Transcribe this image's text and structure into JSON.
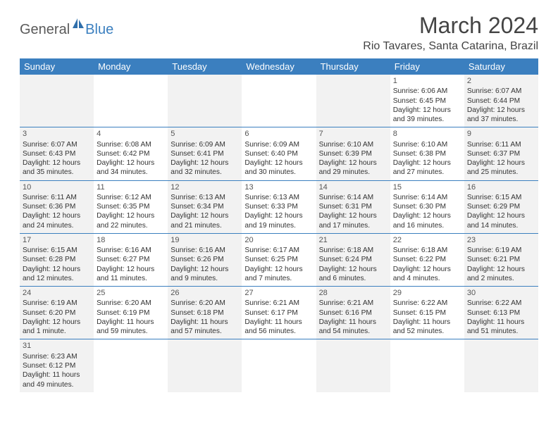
{
  "brand": {
    "part1": "General",
    "part2": "Blue"
  },
  "title": "March 2024",
  "location": "Rio Tavares, Santa Catarina, Brazil",
  "colors": {
    "header_bg": "#3b7fbf",
    "header_text": "#ffffff",
    "shaded_bg": "#f2f2f2",
    "border": "#3b7fbf",
    "text": "#333333",
    "brand_gray": "#5a5a5a",
    "brand_blue": "#3b7fbf"
  },
  "day_names": [
    "Sunday",
    "Monday",
    "Tuesday",
    "Wednesday",
    "Thursday",
    "Friday",
    "Saturday"
  ],
  "weeks": [
    [
      {
        "shaded": true
      },
      {
        "shaded": false
      },
      {
        "shaded": true
      },
      {
        "shaded": false
      },
      {
        "shaded": true
      },
      {
        "shaded": false,
        "num": "1",
        "sunrise": "Sunrise: 6:06 AM",
        "sunset": "Sunset: 6:45 PM",
        "daylight1": "Daylight: 12 hours",
        "daylight2": "and 39 minutes."
      },
      {
        "shaded": true,
        "num": "2",
        "sunrise": "Sunrise: 6:07 AM",
        "sunset": "Sunset: 6:44 PM",
        "daylight1": "Daylight: 12 hours",
        "daylight2": "and 37 minutes."
      }
    ],
    [
      {
        "shaded": true,
        "num": "3",
        "sunrise": "Sunrise: 6:07 AM",
        "sunset": "Sunset: 6:43 PM",
        "daylight1": "Daylight: 12 hours",
        "daylight2": "and 35 minutes."
      },
      {
        "shaded": false,
        "num": "4",
        "sunrise": "Sunrise: 6:08 AM",
        "sunset": "Sunset: 6:42 PM",
        "daylight1": "Daylight: 12 hours",
        "daylight2": "and 34 minutes."
      },
      {
        "shaded": true,
        "num": "5",
        "sunrise": "Sunrise: 6:09 AM",
        "sunset": "Sunset: 6:41 PM",
        "daylight1": "Daylight: 12 hours",
        "daylight2": "and 32 minutes."
      },
      {
        "shaded": false,
        "num": "6",
        "sunrise": "Sunrise: 6:09 AM",
        "sunset": "Sunset: 6:40 PM",
        "daylight1": "Daylight: 12 hours",
        "daylight2": "and 30 minutes."
      },
      {
        "shaded": true,
        "num": "7",
        "sunrise": "Sunrise: 6:10 AM",
        "sunset": "Sunset: 6:39 PM",
        "daylight1": "Daylight: 12 hours",
        "daylight2": "and 29 minutes."
      },
      {
        "shaded": false,
        "num": "8",
        "sunrise": "Sunrise: 6:10 AM",
        "sunset": "Sunset: 6:38 PM",
        "daylight1": "Daylight: 12 hours",
        "daylight2": "and 27 minutes."
      },
      {
        "shaded": true,
        "num": "9",
        "sunrise": "Sunrise: 6:11 AM",
        "sunset": "Sunset: 6:37 PM",
        "daylight1": "Daylight: 12 hours",
        "daylight2": "and 25 minutes."
      }
    ],
    [
      {
        "shaded": true,
        "num": "10",
        "sunrise": "Sunrise: 6:11 AM",
        "sunset": "Sunset: 6:36 PM",
        "daylight1": "Daylight: 12 hours",
        "daylight2": "and 24 minutes."
      },
      {
        "shaded": false,
        "num": "11",
        "sunrise": "Sunrise: 6:12 AM",
        "sunset": "Sunset: 6:35 PM",
        "daylight1": "Daylight: 12 hours",
        "daylight2": "and 22 minutes."
      },
      {
        "shaded": true,
        "num": "12",
        "sunrise": "Sunrise: 6:13 AM",
        "sunset": "Sunset: 6:34 PM",
        "daylight1": "Daylight: 12 hours",
        "daylight2": "and 21 minutes."
      },
      {
        "shaded": false,
        "num": "13",
        "sunrise": "Sunrise: 6:13 AM",
        "sunset": "Sunset: 6:33 PM",
        "daylight1": "Daylight: 12 hours",
        "daylight2": "and 19 minutes."
      },
      {
        "shaded": true,
        "num": "14",
        "sunrise": "Sunrise: 6:14 AM",
        "sunset": "Sunset: 6:31 PM",
        "daylight1": "Daylight: 12 hours",
        "daylight2": "and 17 minutes."
      },
      {
        "shaded": false,
        "num": "15",
        "sunrise": "Sunrise: 6:14 AM",
        "sunset": "Sunset: 6:30 PM",
        "daylight1": "Daylight: 12 hours",
        "daylight2": "and 16 minutes."
      },
      {
        "shaded": true,
        "num": "16",
        "sunrise": "Sunrise: 6:15 AM",
        "sunset": "Sunset: 6:29 PM",
        "daylight1": "Daylight: 12 hours",
        "daylight2": "and 14 minutes."
      }
    ],
    [
      {
        "shaded": true,
        "num": "17",
        "sunrise": "Sunrise: 6:15 AM",
        "sunset": "Sunset: 6:28 PM",
        "daylight1": "Daylight: 12 hours",
        "daylight2": "and 12 minutes."
      },
      {
        "shaded": false,
        "num": "18",
        "sunrise": "Sunrise: 6:16 AM",
        "sunset": "Sunset: 6:27 PM",
        "daylight1": "Daylight: 12 hours",
        "daylight2": "and 11 minutes."
      },
      {
        "shaded": true,
        "num": "19",
        "sunrise": "Sunrise: 6:16 AM",
        "sunset": "Sunset: 6:26 PM",
        "daylight1": "Daylight: 12 hours",
        "daylight2": "and 9 minutes."
      },
      {
        "shaded": false,
        "num": "20",
        "sunrise": "Sunrise: 6:17 AM",
        "sunset": "Sunset: 6:25 PM",
        "daylight1": "Daylight: 12 hours",
        "daylight2": "and 7 minutes."
      },
      {
        "shaded": true,
        "num": "21",
        "sunrise": "Sunrise: 6:18 AM",
        "sunset": "Sunset: 6:24 PM",
        "daylight1": "Daylight: 12 hours",
        "daylight2": "and 6 minutes."
      },
      {
        "shaded": false,
        "num": "22",
        "sunrise": "Sunrise: 6:18 AM",
        "sunset": "Sunset: 6:22 PM",
        "daylight1": "Daylight: 12 hours",
        "daylight2": "and 4 minutes."
      },
      {
        "shaded": true,
        "num": "23",
        "sunrise": "Sunrise: 6:19 AM",
        "sunset": "Sunset: 6:21 PM",
        "daylight1": "Daylight: 12 hours",
        "daylight2": "and 2 minutes."
      }
    ],
    [
      {
        "shaded": true,
        "num": "24",
        "sunrise": "Sunrise: 6:19 AM",
        "sunset": "Sunset: 6:20 PM",
        "daylight1": "Daylight: 12 hours",
        "daylight2": "and 1 minute."
      },
      {
        "shaded": false,
        "num": "25",
        "sunrise": "Sunrise: 6:20 AM",
        "sunset": "Sunset: 6:19 PM",
        "daylight1": "Daylight: 11 hours",
        "daylight2": "and 59 minutes."
      },
      {
        "shaded": true,
        "num": "26",
        "sunrise": "Sunrise: 6:20 AM",
        "sunset": "Sunset: 6:18 PM",
        "daylight1": "Daylight: 11 hours",
        "daylight2": "and 57 minutes."
      },
      {
        "shaded": false,
        "num": "27",
        "sunrise": "Sunrise: 6:21 AM",
        "sunset": "Sunset: 6:17 PM",
        "daylight1": "Daylight: 11 hours",
        "daylight2": "and 56 minutes."
      },
      {
        "shaded": true,
        "num": "28",
        "sunrise": "Sunrise: 6:21 AM",
        "sunset": "Sunset: 6:16 PM",
        "daylight1": "Daylight: 11 hours",
        "daylight2": "and 54 minutes."
      },
      {
        "shaded": false,
        "num": "29",
        "sunrise": "Sunrise: 6:22 AM",
        "sunset": "Sunset: 6:15 PM",
        "daylight1": "Daylight: 11 hours",
        "daylight2": "and 52 minutes."
      },
      {
        "shaded": true,
        "num": "30",
        "sunrise": "Sunrise: 6:22 AM",
        "sunset": "Sunset: 6:13 PM",
        "daylight1": "Daylight: 11 hours",
        "daylight2": "and 51 minutes."
      }
    ],
    [
      {
        "shaded": true,
        "num": "31",
        "sunrise": "Sunrise: 6:23 AM",
        "sunset": "Sunset: 6:12 PM",
        "daylight1": "Daylight: 11 hours",
        "daylight2": "and 49 minutes."
      },
      {
        "shaded": false
      },
      {
        "shaded": true
      },
      {
        "shaded": false
      },
      {
        "shaded": true
      },
      {
        "shaded": false
      },
      {
        "shaded": true
      }
    ]
  ]
}
